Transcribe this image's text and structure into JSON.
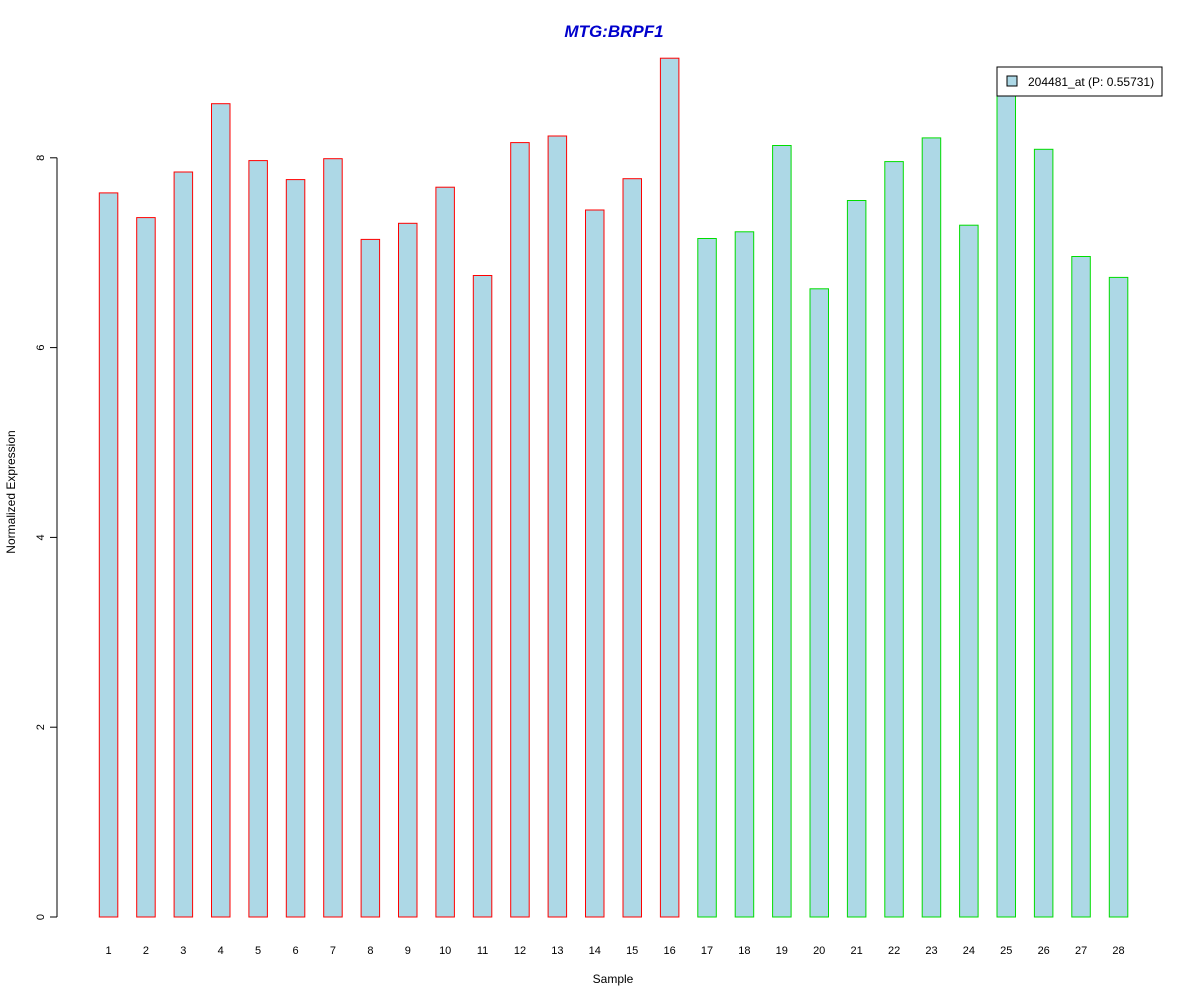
{
  "chart_data": {
    "type": "bar",
    "title": "MTG:BRPF1",
    "xlabel": "Sample",
    "ylabel": "Normalized Expression",
    "ylim": [
      0,
      9.1
    ],
    "yticks": [
      0,
      2,
      4,
      6,
      8
    ],
    "categories": [
      "1",
      "2",
      "3",
      "4",
      "5",
      "6",
      "7",
      "8",
      "9",
      "10",
      "11",
      "12",
      "13",
      "14",
      "15",
      "16",
      "17",
      "18",
      "19",
      "20",
      "21",
      "22",
      "23",
      "24",
      "25",
      "26",
      "27",
      "28"
    ],
    "series": [
      {
        "name": "204481_at (P: 0.55731)",
        "values": [
          7.63,
          7.37,
          7.85,
          8.57,
          7.97,
          7.77,
          7.99,
          7.14,
          7.31,
          7.69,
          6.76,
          8.16,
          8.23,
          7.45,
          7.78,
          9.05,
          7.15,
          7.22,
          8.13,
          6.62,
          7.55,
          7.96,
          8.21,
          7.29,
          8.74,
          8.09,
          6.96,
          6.74
        ]
      }
    ],
    "group_borders": [
      "#ff0000",
      "#ff0000",
      "#ff0000",
      "#ff0000",
      "#ff0000",
      "#ff0000",
      "#ff0000",
      "#ff0000",
      "#ff0000",
      "#ff0000",
      "#ff0000",
      "#ff0000",
      "#ff0000",
      "#ff0000",
      "#ff0000",
      "#ff0000",
      "#00dd00",
      "#00dd00",
      "#00dd00",
      "#00dd00",
      "#00dd00",
      "#00dd00",
      "#00dd00",
      "#00dd00",
      "#00dd00",
      "#00dd00",
      "#00dd00",
      "#00dd00"
    ],
    "bar_fill": "#add8e6",
    "title_color": "#0000cc",
    "grid": false,
    "legend_position": "top-right"
  }
}
